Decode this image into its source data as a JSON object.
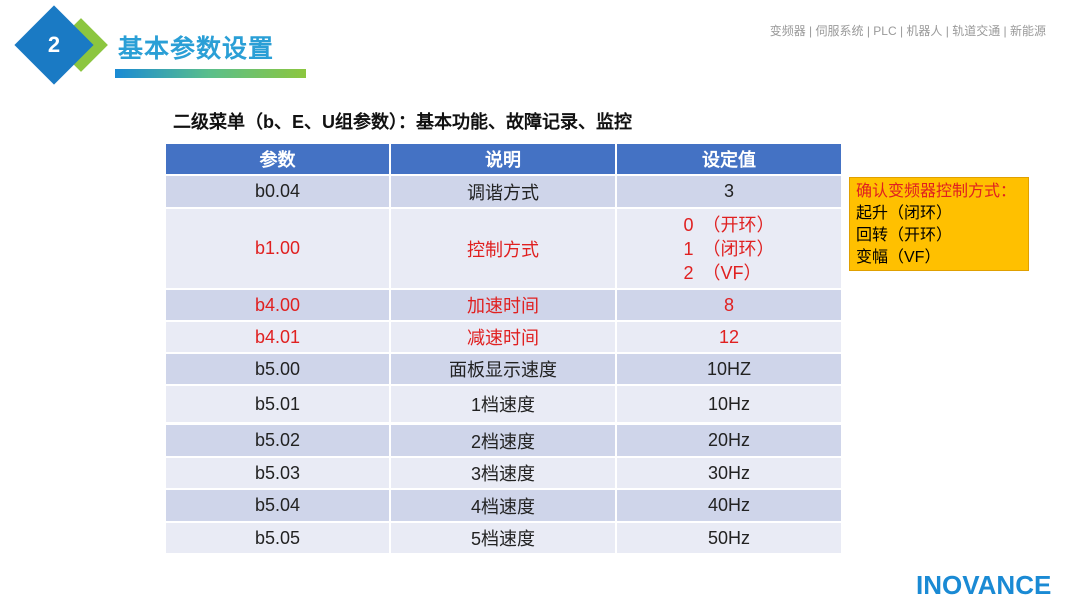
{
  "header": {
    "section_number": "2",
    "title": "基本参数设置",
    "nav": "变频器 | 伺服系统 | PLC | 机器人 | 轨道交通 | 新能源"
  },
  "subtitle": "二级菜单（b、E、U组参数）：基本功能、故障记录、监控",
  "table": {
    "columns": [
      "参数",
      "说明",
      "设定值"
    ],
    "rows": [
      {
        "param": "b0.04",
        "desc": "调谐方式",
        "value": "3",
        "highlight": false
      },
      {
        "param": "b1.00",
        "desc": "控制方式",
        "value": "0　（开环）\n1　（闭环）\n2　（VF）",
        "highlight": true
      },
      {
        "param": "b4.00",
        "desc": "加速时间",
        "value": "8",
        "highlight": true
      },
      {
        "param": "b4.01",
        "desc": "减速时间",
        "value": "12",
        "highlight": true
      },
      {
        "param": "b5.00",
        "desc": "面板显示速度",
        "value": "10HZ",
        "highlight": false
      },
      {
        "param": "b5.01",
        "desc": "1档速度",
        "value": "10Hz",
        "highlight": false
      },
      {
        "param": "b5.02",
        "desc": "2档速度",
        "value": "20Hz",
        "highlight": false
      },
      {
        "param": "b5.03",
        "desc": "3档速度",
        "value": "30Hz",
        "highlight": false
      },
      {
        "param": "b5.04",
        "desc": "4档速度",
        "value": "40Hz",
        "highlight": false
      },
      {
        "param": "b5.05",
        "desc": "5档速度",
        "value": "50Hz",
        "highlight": false
      }
    ]
  },
  "note": {
    "title": "确认变频器控制方式：",
    "lines": [
      "起升（闭环）",
      "回转（开环）",
      "变幅（VF）"
    ]
  },
  "logo": "INOVANCE",
  "colors": {
    "header_bg": "#4472c4",
    "row_dark": "#cfd5ea",
    "row_light": "#e9ebf5",
    "highlight": "#e02020",
    "note_bg": "#ffc000",
    "brand": "#1a8ad4"
  }
}
